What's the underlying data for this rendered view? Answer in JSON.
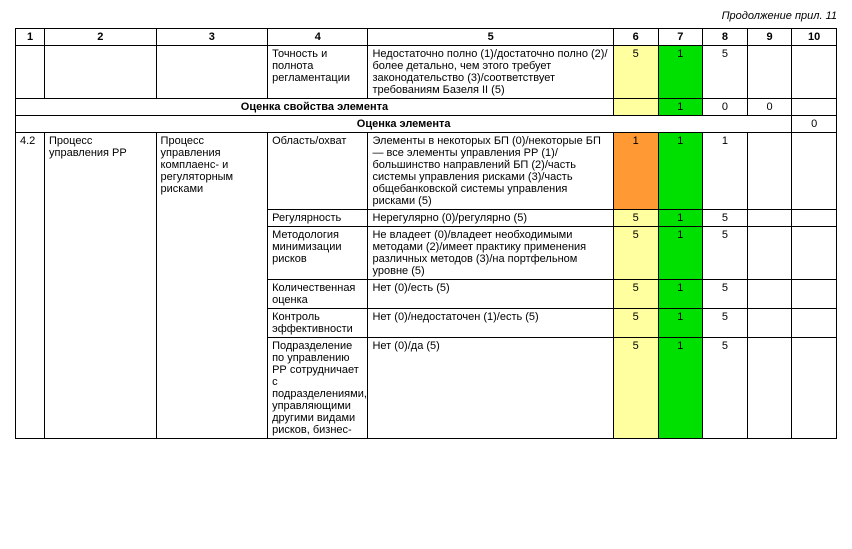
{
  "continuation_label": "Продолжение прил. 11",
  "headers": {
    "h1": "1",
    "h2": "2",
    "h3": "3",
    "h4": "4",
    "h5": "5",
    "h6": "6",
    "h7": "7",
    "h8": "8",
    "h9": "9",
    "h10": "10"
  },
  "row_a": {
    "col4": "Точность и полнота регламентации",
    "col5": "Недостаточно полно (1)/достаточно полно (2)/более детально, чем этого требует законодательство (3)/соответствует требованиям Базеля II (5)",
    "c6": "5",
    "c7": "1",
    "c8": "5",
    "c9": "",
    "c10": ""
  },
  "row_b": {
    "label": "Оценка свойства элемента",
    "c6": "",
    "c7": "1",
    "c8": "0",
    "c9": "0",
    "c10": ""
  },
  "row_c": {
    "label": "Оценка элемента",
    "c10": "0"
  },
  "row_d": {
    "c1": "4.2",
    "c2": "Процесс управления РР",
    "c3": "Процесс управления комплаенс- и регуляторным рисками",
    "c4": "Область/охват",
    "c5": "Элементы в некоторых БП (0)/некоторые БП — все элементы управления РР (1)/большинство направлений БП (2)/часть системы управления рисками (3)/часть общебанковской системы управления рисками (5)",
    "c6": "1",
    "c7": "1",
    "c8": "1",
    "c9": "",
    "c10": ""
  },
  "row_e": {
    "c4": "Регулярность",
    "c5": "Нерегулярно (0)/регулярно (5)",
    "c6": "5",
    "c7": "1",
    "c8": "5",
    "c9": "",
    "c10": ""
  },
  "row_f": {
    "c4": "Методология минимизации рисков",
    "c5": "Не владеет (0)/владеет необходимыми методами (2)/имеет практику применения различных методов (3)/на портфельном уровне (5)",
    "c6": "5",
    "c7": "1",
    "c8": "5",
    "c9": "",
    "c10": ""
  },
  "row_g": {
    "c4": "Количественная оценка",
    "c5": "Нет (0)/есть (5)",
    "c6": "5",
    "c7": "1",
    "c8": "5",
    "c9": "",
    "c10": ""
  },
  "row_h": {
    "c4": "Контроль эффективности",
    "c5": "Нет (0)/недостаточен (1)/есть (5)",
    "c6": "5",
    "c7": "1",
    "c8": "5",
    "c9": "",
    "c10": ""
  },
  "row_i": {
    "c4": "Подразделение по управлению РР сотрудничает с подразделениями, управляющими другими видами рисков, бизнес-",
    "c5": "Нет (0)/да (5)",
    "c6": "5",
    "c7": "1",
    "c8": "5",
    "c9": "",
    "c10": ""
  },
  "colors": {
    "yellow": "#ffff9f",
    "green": "#00e000",
    "orange": "#ff9933"
  }
}
